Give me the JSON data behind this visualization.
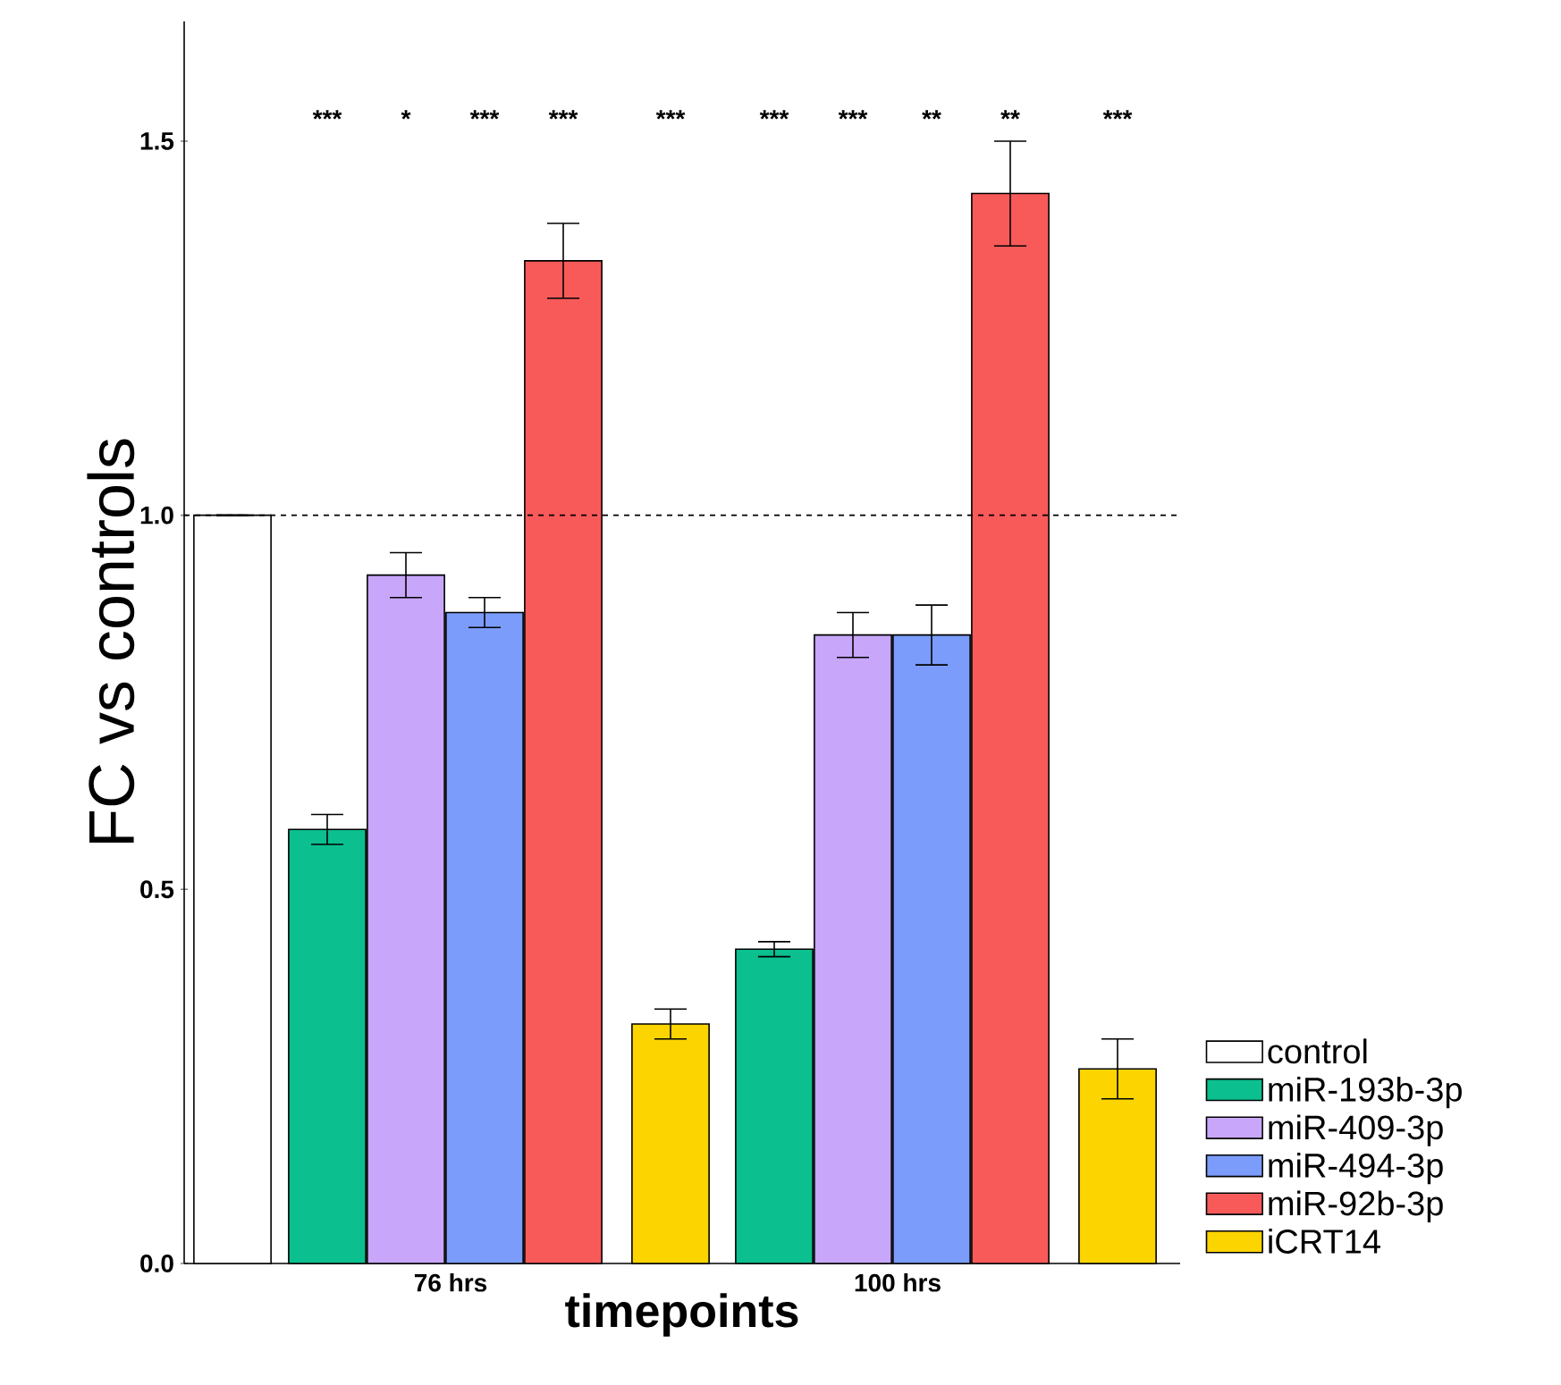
{
  "chart_data": {
    "type": "bar",
    "xlabel": "timepoints",
    "ylabel": "FC vs controls",
    "categories": [
      "76 hrs",
      "100 hrs"
    ],
    "ylim": [
      0,
      1.66
    ],
    "yticks": [
      {
        "value": 0,
        "label": "0.0"
      },
      {
        "value": 0.5,
        "label": "0.5"
      },
      {
        "value": 1,
        "label": "1.0"
      },
      {
        "value": 1.5,
        "label": "1.5"
      }
    ],
    "legend": "right",
    "grid": false,
    "ref_lines": [
      {
        "axis": "y",
        "value": 1,
        "line_style": "dashed",
        "color": "#000000"
      }
    ],
    "annotations": [
      "***",
      "*",
      "***",
      "***",
      "***",
      "***",
      "***",
      "**",
      "**",
      "***"
    ],
    "series": [
      {
        "name": "control",
        "color": "#ffffff",
        "values": [
          1.0,
          null
        ],
        "errors": [
          null,
          null
        ]
      },
      {
        "name": "miR-193b-3p",
        "color": "#0bbf8f",
        "values": [
          0.58,
          0.42
        ],
        "errors": [
          0.02,
          0.01
        ]
      },
      {
        "name": "miR-409-3p",
        "color": "#c8a6fa",
        "values": [
          0.92,
          0.84
        ],
        "errors": [
          0.03,
          0.03
        ]
      },
      {
        "name": "miR-494-3p",
        "color": "#7b9cfa",
        "values": [
          0.87,
          0.84
        ],
        "errors": [
          0.02,
          0.04
        ]
      },
      {
        "name": "miR-92b-3p",
        "color": "#f85a5a",
        "values": [
          1.34,
          1.43
        ],
        "errors": [
          0.05,
          0.07
        ]
      },
      {
        "name": "iCRT14",
        "color": "#fcd400",
        "values": [
          0.32,
          0.26
        ],
        "errors": [
          0.02,
          0.04
        ]
      }
    ]
  }
}
